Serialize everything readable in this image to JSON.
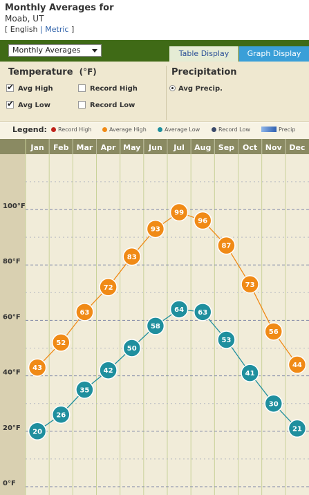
{
  "header": {
    "title": "Monthly Averages for",
    "location": "Moab, UT",
    "bracket_open": "[",
    "bracket_close": "]",
    "separator": "|",
    "units": [
      "English",
      "Metric"
    ],
    "active_unit": "English"
  },
  "toolbar": {
    "view_select": "Monthly Averages",
    "tabs": [
      {
        "label": "Table Display",
        "active": false
      },
      {
        "label": "Graph Display",
        "active": true
      }
    ]
  },
  "temperature": {
    "title": "Temperature",
    "unit": "(°F)",
    "options": [
      {
        "label": "Avg High",
        "checked": true
      },
      {
        "label": "Record High",
        "checked": false
      },
      {
        "label": "Avg Low",
        "checked": true
      },
      {
        "label": "Record Low",
        "checked": false
      }
    ]
  },
  "precipitation": {
    "title": "Precipitation",
    "options": [
      {
        "label": "Avg Precip.",
        "selected": true
      }
    ]
  },
  "legend": {
    "label": "Legend:",
    "items": [
      {
        "name": "Record High",
        "color": "#c0231b"
      },
      {
        "name": "Average High",
        "color": "#f08a16"
      },
      {
        "name": "Average Low",
        "color": "#1f8f9e"
      },
      {
        "name": "Record Low",
        "color": "#3b4a6a"
      },
      {
        "name": "Precip",
        "color": "#2e5fb0"
      }
    ]
  },
  "chart_data": {
    "type": "line",
    "categories": [
      "Jan",
      "Feb",
      "Mar",
      "Apr",
      "May",
      "Jun",
      "Jul",
      "Aug",
      "Sep",
      "Oct",
      "Nov",
      "Dec"
    ],
    "series": [
      {
        "name": "Average High",
        "color": "#f08a16",
        "values": [
          43,
          52,
          63,
          72,
          83,
          93,
          99,
          96,
          87,
          73,
          56,
          44
        ]
      },
      {
        "name": "Average Low",
        "color": "#1f8f9e",
        "values": [
          20,
          26,
          35,
          42,
          50,
          58,
          64,
          63,
          53,
          41,
          30,
          21
        ]
      }
    ],
    "yticks": [
      {
        "value": 0,
        "label": "0°F"
      },
      {
        "value": 20,
        "label": "20°F"
      },
      {
        "value": 40,
        "label": "40°F"
      },
      {
        "value": 60,
        "label": "60°F"
      },
      {
        "value": 80,
        "label": "80°F"
      },
      {
        "value": 100,
        "label": "100°F"
      }
    ],
    "ylim": [
      0,
      100
    ],
    "grid": true,
    "colors": {
      "month_header": "#8a8a62",
      "plot_bg": "#f1ecd9",
      "axis_bg": "#d9d0b1",
      "column_line": "#c9d29a"
    }
  }
}
